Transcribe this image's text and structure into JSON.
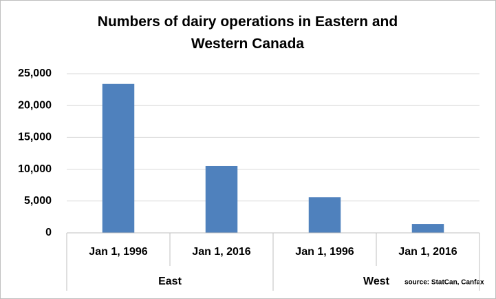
{
  "chart_data": {
    "type": "bar",
    "title": "Numbers of dairy operations in Eastern and Western Canada",
    "groups": [
      {
        "label": "East",
        "categories": [
          "Jan 1, 1996",
          "Jan 1, 2016"
        ],
        "values": [
          23400,
          10500
        ]
      },
      {
        "label": "West",
        "categories": [
          "Jan 1, 1996",
          "Jan 1, 2016"
        ],
        "values": [
          5600,
          1400
        ]
      }
    ],
    "color": "#4f81bd",
    "ylim": [
      0,
      25000
    ],
    "yticks": [
      0,
      {
        "value": 5000,
        "label": "5,000"
      },
      {
        "value": 10000,
        "label": "10,000"
      },
      {
        "value": 15000,
        "label": "15,000"
      },
      {
        "value": 20000,
        "label": "20,000"
      },
      {
        "value": 25000,
        "label": "25,000"
      }
    ],
    "grid": true,
    "annotation": "source: StatCan, Canfax"
  }
}
